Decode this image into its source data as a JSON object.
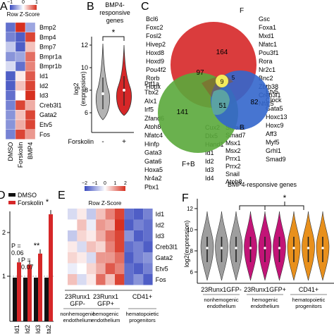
{
  "panels": {
    "A": {
      "letter": "A",
      "scale": {
        "title": "Row Z-Score",
        "ticks": [
          "−1",
          "0",
          "1"
        ]
      },
      "genes": [
        "Bmp2",
        "Bmp4",
        "Bmp7",
        "Bmpr1a",
        "Bmpr1b",
        "Id1",
        "Id2",
        "Id3",
        "Creb3l1",
        "Gata2",
        "Etv5",
        "Fos"
      ],
      "columns": [
        "DMSO",
        "Forskolin",
        "BMP4"
      ],
      "heat": [
        [
          -0.8,
          1.0,
          -0.5
        ],
        [
          -0.7,
          -0.9,
          0.9
        ],
        [
          -0.3,
          -0.9,
          0.3
        ],
        [
          -0.6,
          -0.5,
          0.7
        ],
        [
          -0.2,
          -0.8,
          0.6
        ],
        [
          -0.9,
          0.1,
          0.8
        ],
        [
          -0.9,
          0.3,
          0.9
        ],
        [
          -0.8,
          0.0,
          1.0
        ],
        [
          -0.7,
          0.9,
          0.4
        ],
        [
          -0.6,
          0.3,
          0.9
        ],
        [
          -0.6,
          0.4,
          0.9
        ],
        [
          -0.7,
          0.9,
          0.5
        ]
      ],
      "colors": {
        "low": "#3b4cc0",
        "mid": "#ffffff",
        "high": "#d7301f"
      }
    },
    "B": {
      "letter": "B",
      "title_line1": "BMP4-",
      "title_line2": "responsive",
      "title_line3": "genes",
      "ylabel": "log2\n(expression)",
      "yticks": [
        "6",
        "8",
        "10",
        "12"
      ],
      "xlabel": "Forskolin",
      "groups": [
        "-",
        "+"
      ],
      "sig": "*",
      "colors": {
        "minus": "#b3b3b3",
        "plus": "#d62728"
      }
    },
    "C": {
      "letter": "C",
      "left_list": [
        "Bcl6",
        "Foxc2",
        "Fosl2",
        "Hivep2",
        "Hoxd8",
        "Hoxd9",
        "Pou4f2",
        "Rorb",
        "Hopx"
      ],
      "right_list": [
        "Gsc",
        "Foxa1",
        "Mxd1",
        "Nfatc1",
        "Pou3f1",
        "Rora",
        "Nr2c1",
        "Bnc2",
        "Zbtb38",
        "Creb3l1",
        "Nfat5"
      ],
      "green_list": [
        "Ptf1a",
        "Tbx2",
        "Alx1",
        "Irf5",
        "Zfand6",
        "Atoh8",
        "Nfatc4",
        "Hinfp",
        "Gata3",
        "Gata6",
        "Hoxa5",
        "Nr4a2",
        "Pbx1"
      ],
      "blue_list": [
        "Etv5",
        "Clock",
        "Gata5",
        "Hoxc13",
        "Hoxc9",
        "Aff3",
        "Myf5",
        "Grhl1",
        "Smad9"
      ],
      "center_col1": [
        "Cux2",
        "Dlx5",
        "Hand1",
        "Id1",
        "Id2",
        "Id3",
        "Id4"
      ],
      "center_col2": [
        "Smad6",
        "Smad7",
        "Msx1",
        "Msx2",
        "Prrx1",
        "Prrx2",
        "Snail",
        "Atoh8"
      ],
      "sets": {
        "F": "F",
        "FB": "F+B",
        "B": "B"
      },
      "counts": {
        "F_only": "164",
        "F_FB": "97",
        "F_B": "5",
        "all": "9",
        "FB_only": "141",
        "FB_B": "51",
        "B_only": "82"
      },
      "colors": {
        "F": "#d62728",
        "FB": "#5aa83b",
        "B": "#3366cc",
        "center": "#f2ea5c"
      }
    },
    "D": {
      "letter": "D",
      "legend": [
        "DMSO",
        "Forskolin"
      ],
      "yticks": [
        "1",
        "2"
      ],
      "genes": [
        "Id1",
        "Id2",
        "Id3",
        "Gata2"
      ],
      "annotations": [
        "P =\n0.06",
        "P =\n0.07",
        "**",
        "*"
      ],
      "colors": {
        "DMSO": "#111111",
        "Forskolin": "#d62728"
      }
    },
    "E": {
      "letter": "E",
      "scale": {
        "title": "Row Z-Score",
        "ticks": [
          "−2",
          "−1",
          "0",
          "1",
          "2"
        ]
      },
      "genes": [
        "Id1",
        "Id2",
        "Id3",
        "Creb3l1",
        "Gata2",
        "Etv5",
        "Fos"
      ],
      "groups": [
        {
          "label": "23Runx1\nGFP-",
          "sub": "nonhemogenic\nendothelium"
        },
        {
          "label": "23Runx1\nGFP+",
          "sub": "hemogenic\nendothelium"
        },
        {
          "label": "CD41+",
          "sub": "hematopoietic\nprogenitors"
        }
      ],
      "heat": [
        [
          -0.2,
          0.1,
          -0.3,
          0.3,
          0.6,
          0.9,
          -0.8,
          -0.9,
          -0.7
        ],
        [
          0.0,
          0.3,
          -0.1,
          0.5,
          0.4,
          1.0,
          -0.9,
          -0.7,
          -0.8
        ],
        [
          -0.3,
          0.2,
          0.1,
          0.4,
          0.7,
          0.9,
          -0.6,
          -0.9,
          -0.8
        ],
        [
          0.1,
          -0.2,
          0.3,
          0.2,
          0.6,
          0.9,
          -0.8,
          -0.7,
          -0.9
        ],
        [
          0.2,
          0.1,
          -0.2,
          0.5,
          0.5,
          0.7,
          -0.9,
          -0.7,
          -0.6
        ],
        [
          -0.1,
          0.0,
          0.2,
          0.4,
          0.8,
          0.6,
          -0.8,
          -0.9,
          -0.7
        ],
        [
          0.3,
          -0.2,
          0.1,
          0.7,
          0.3,
          0.9,
          -0.8,
          -0.6,
          -0.9
        ]
      ]
    },
    "F": {
      "letter": "F",
      "title": "BMP4-responsive genes",
      "ylabel": "log2(expression)",
      "yticks": [
        "6",
        "8",
        "10",
        "12"
      ],
      "groups": [
        {
          "label": "23Runx1GFP-",
          "sub": "nonhemogenic\nendothelium"
        },
        {
          "label": "23Runx1GFP+",
          "sub": "hemogenic\nendothelium"
        },
        {
          "label": "CD41+",
          "sub": "hematopoietic\nprogenitors"
        }
      ],
      "sig": "*",
      "colors": {
        "grey": "#9e9e9e",
        "magenta": "#c21477",
        "orange": "#e8901c"
      }
    }
  }
}
